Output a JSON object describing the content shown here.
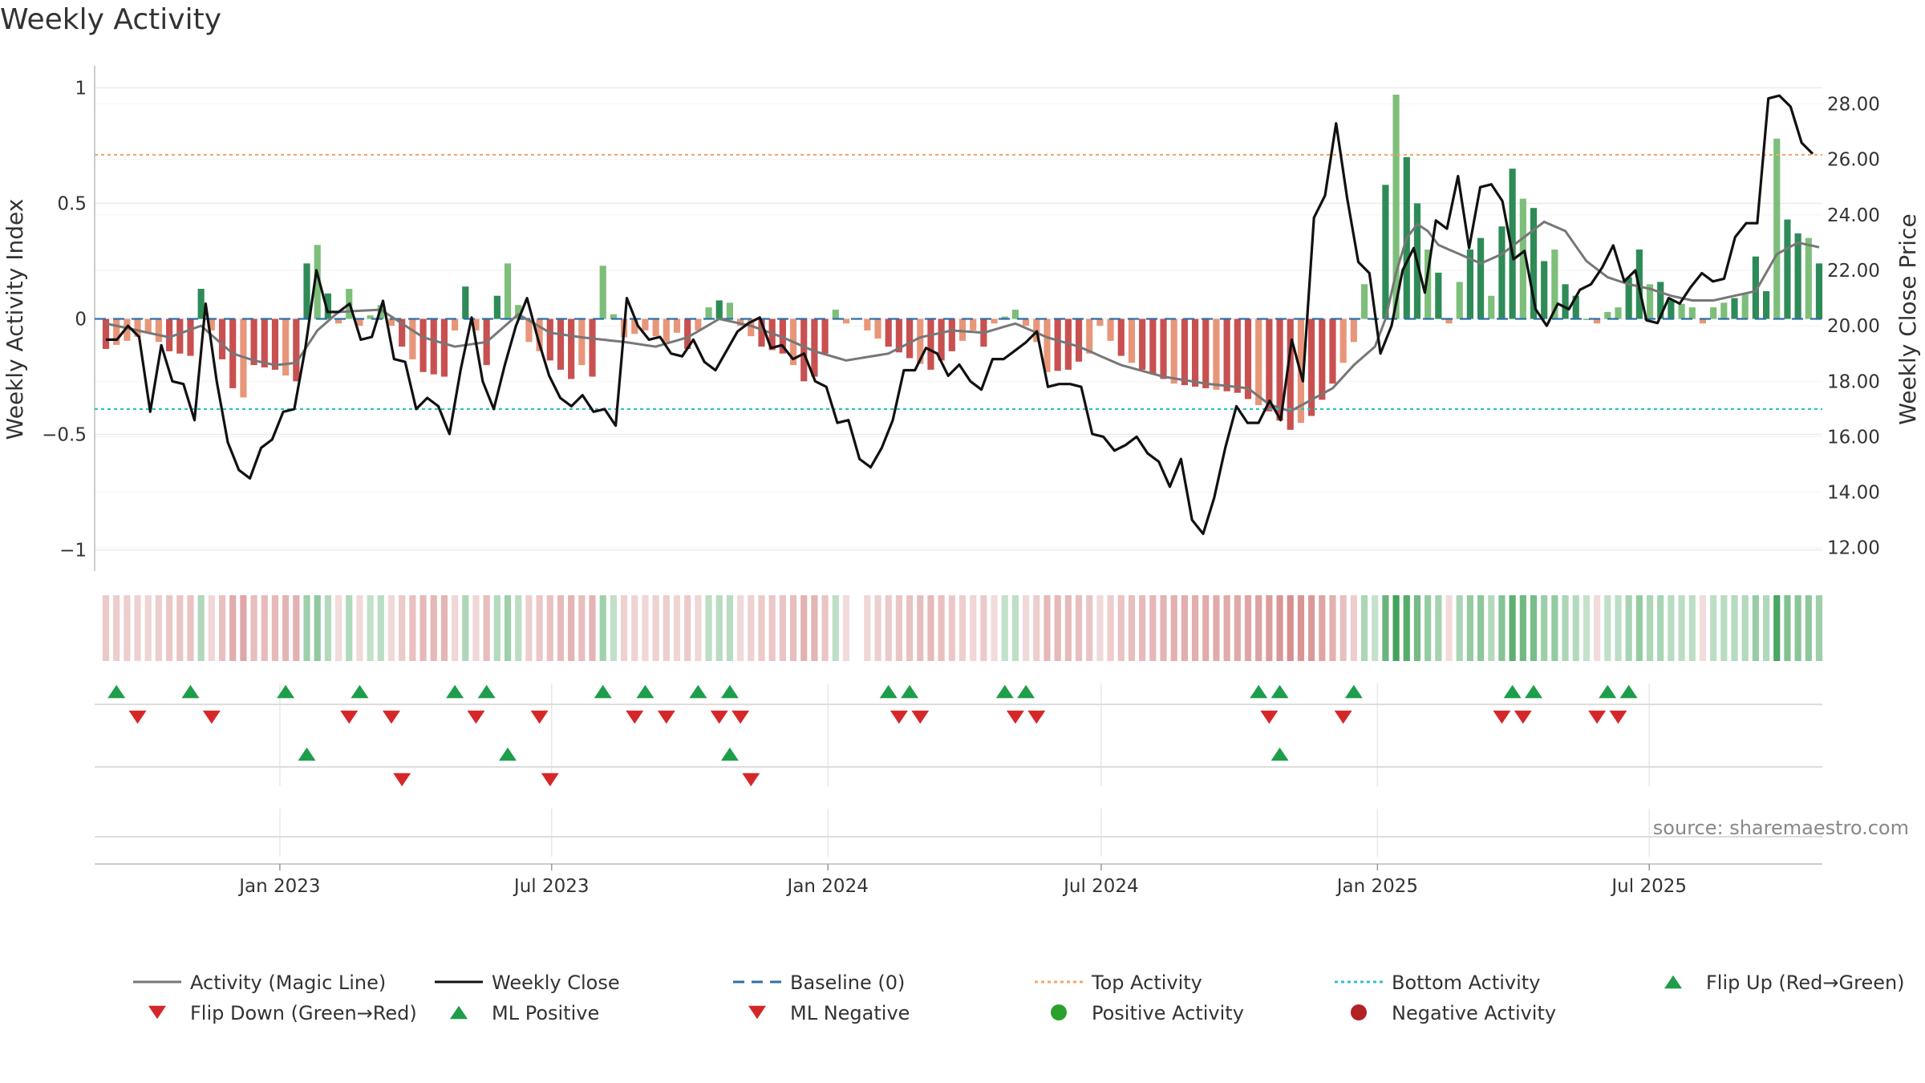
{
  "chart_data": {
    "type": "bar",
    "title": "Weekly Activity",
    "ylabel_left": "Weekly Activity Index",
    "ylabel_right": "Weekly Close Price",
    "ylim_left": [
      -1.05,
      1.05
    ],
    "ylim_right": [
      11.5,
      29.0
    ],
    "yticks_left": [
      {
        "v": 1,
        "label": "1"
      },
      {
        "v": 0.5,
        "label": "0.5"
      },
      {
        "v": 0,
        "label": "0"
      },
      {
        "v": -0.5,
        "label": "−0.5"
      },
      {
        "v": -1,
        "label": "−1"
      }
    ],
    "yticks_right": [
      "12.00",
      "14.00",
      "16.00",
      "18.00",
      "20.00",
      "22.00",
      "24.00",
      "26.00",
      "28.00"
    ],
    "x_start": "2022-09-05",
    "x_end": "2025-10-20",
    "xticks": [
      {
        "date": "2023-01-01",
        "label": "Jan 2023"
      },
      {
        "date": "2023-07-01",
        "label": "Jul 2023"
      },
      {
        "date": "2024-01-01",
        "label": "Jan 2024"
      },
      {
        "date": "2024-07-01",
        "label": "Jul 2024"
      },
      {
        "date": "2025-01-01",
        "label": "Jan 2025"
      },
      {
        "date": "2025-07-01",
        "label": "Jul 2025"
      }
    ],
    "top_activity": 0.71,
    "bottom_activity": -0.39,
    "activity_keyframes": [
      [
        0,
        -0.13
      ],
      [
        4,
        -0.06
      ],
      [
        6,
        -0.14
      ],
      [
        8,
        -0.16
      ],
      [
        9,
        0.13
      ],
      [
        10,
        -0.05
      ],
      [
        12,
        -0.3
      ],
      [
        13,
        -0.34
      ],
      [
        14,
        -0.2
      ],
      [
        16,
        -0.22
      ],
      [
        18,
        -0.27
      ],
      [
        19,
        0.24
      ],
      [
        20,
        0.32
      ],
      [
        21,
        0.11
      ],
      [
        22,
        -0.02
      ],
      [
        23,
        0.13
      ],
      [
        24,
        -0.03
      ],
      [
        26,
        0.06
      ],
      [
        28,
        -0.12
      ],
      [
        30,
        -0.23
      ],
      [
        32,
        -0.25
      ],
      [
        33,
        -0.05
      ],
      [
        34,
        0.14
      ],
      [
        35,
        -0.05
      ],
      [
        36,
        -0.2
      ],
      [
        37,
        0.1
      ],
      [
        38,
        0.24
      ],
      [
        39,
        0.06
      ],
      [
        40,
        -0.1
      ],
      [
        42,
        -0.18
      ],
      [
        44,
        -0.26
      ],
      [
        45,
        -0.2
      ],
      [
        46,
        -0.25
      ],
      [
        47,
        0.23
      ],
      [
        48,
        0.02
      ],
      [
        49,
        -0.08
      ],
      [
        51,
        -0.05
      ],
      [
        53,
        -0.1
      ],
      [
        54,
        -0.06
      ],
      [
        55,
        -0.13
      ],
      [
        56,
        -0.05
      ],
      [
        57,
        0.05
      ],
      [
        58,
        0.08
      ],
      [
        59,
        0.07
      ],
      [
        60,
        -0.03
      ],
      [
        62,
        -0.12
      ],
      [
        64,
        -0.15
      ],
      [
        65,
        -0.2
      ],
      [
        66,
        -0.27
      ],
      [
        67,
        -0.25
      ],
      [
        68,
        -0.15
      ],
      [
        69,
        0.04
      ],
      [
        70,
        -0.02
      ],
      [
        71,
        0.02
      ],
      [
        72,
        -0.05
      ],
      [
        74,
        -0.12
      ],
      [
        76,
        -0.17
      ],
      [
        78,
        -0.22
      ],
      [
        80,
        -0.14
      ],
      [
        82,
        -0.05
      ],
      [
        83,
        -0.12
      ],
      [
        84,
        -0.02
      ],
      [
        86,
        0.04
      ],
      [
        88,
        -0.1
      ],
      [
        89,
        -0.23
      ],
      [
        91,
        -0.22
      ],
      [
        93,
        -0.15
      ],
      [
        94,
        -0.03
      ],
      [
        96,
        -0.16
      ],
      [
        98,
        -0.22
      ],
      [
        101,
        -0.28
      ],
      [
        104,
        -0.3
      ],
      [
        107,
        -0.32
      ],
      [
        110,
        -0.4
      ],
      [
        112,
        -0.48
      ],
      [
        114,
        -0.42
      ],
      [
        116,
        -0.28
      ],
      [
        118,
        -0.1
      ],
      [
        119,
        0.15
      ],
      [
        120,
        0.0
      ],
      [
        121,
        0.58
      ],
      [
        122,
        0.97
      ],
      [
        123,
        0.7
      ],
      [
        124,
        0.5
      ],
      [
        125,
        0.3
      ],
      [
        126,
        0.2
      ],
      [
        127,
        -0.02
      ],
      [
        128,
        0.16
      ],
      [
        129,
        0.3
      ],
      [
        130,
        0.35
      ],
      [
        131,
        0.1
      ],
      [
        132,
        0.4
      ],
      [
        133,
        0.65
      ],
      [
        134,
        0.52
      ],
      [
        135,
        0.48
      ],
      [
        136,
        0.25
      ],
      [
        137,
        0.3
      ],
      [
        138,
        0.15
      ],
      [
        139,
        0.1
      ],
      [
        140,
        0.0
      ],
      [
        141,
        -0.02
      ],
      [
        142,
        0.03
      ],
      [
        143,
        0.05
      ],
      [
        144,
        0.18
      ],
      [
        145,
        0.3
      ],
      [
        146,
        0.15
      ],
      [
        147,
        0.16
      ],
      [
        148,
        0.08
      ],
      [
        150,
        0.05
      ],
      [
        151,
        -0.02
      ],
      [
        152,
        0.05
      ],
      [
        153,
        0.07
      ],
      [
        154,
        0.09
      ],
      [
        155,
        0.11
      ],
      [
        156,
        0.27
      ],
      [
        157,
        0.12
      ],
      [
        158,
        0.78
      ],
      [
        159,
        0.43
      ],
      [
        160,
        0.37
      ],
      [
        161,
        0.35
      ],
      [
        162,
        0.24
      ]
    ],
    "bar_gap_weeks": [
      71
    ],
    "magic_line_keyframes": [
      [
        0,
        -0.02
      ],
      [
        3,
        -0.05
      ],
      [
        6,
        -0.08
      ],
      [
        9,
        -0.03
      ],
      [
        12,
        -0.15
      ],
      [
        14,
        -0.18
      ],
      [
        16,
        -0.2
      ],
      [
        18,
        -0.19
      ],
      [
        20,
        -0.05
      ],
      [
        22,
        0.03
      ],
      [
        26,
        0.04
      ],
      [
        30,
        -0.08
      ],
      [
        33,
        -0.12
      ],
      [
        36,
        -0.1
      ],
      [
        39,
        0.02
      ],
      [
        42,
        -0.06
      ],
      [
        45,
        -0.08
      ],
      [
        49,
        -0.1
      ],
      [
        52,
        -0.12
      ],
      [
        55,
        -0.08
      ],
      [
        58,
        0.0
      ],
      [
        61,
        -0.03
      ],
      [
        64,
        -0.08
      ],
      [
        67,
        -0.14
      ],
      [
        70,
        -0.18
      ],
      [
        74,
        -0.15
      ],
      [
        77,
        -0.08
      ],
      [
        80,
        -0.05
      ],
      [
        83,
        -0.06
      ],
      [
        86,
        -0.02
      ],
      [
        89,
        -0.08
      ],
      [
        92,
        -0.12
      ],
      [
        96,
        -0.2
      ],
      [
        100,
        -0.25
      ],
      [
        104,
        -0.28
      ],
      [
        108,
        -0.3
      ],
      [
        110,
        -0.37
      ],
      [
        112,
        -0.4
      ],
      [
        114,
        -0.35
      ],
      [
        116,
        -0.3
      ],
      [
        118,
        -0.2
      ],
      [
        120,
        -0.12
      ],
      [
        121,
        0.0
      ],
      [
        122,
        0.2
      ],
      [
        123,
        0.35
      ],
      [
        124,
        0.41
      ],
      [
        125,
        0.38
      ],
      [
        126,
        0.32
      ],
      [
        128,
        0.28
      ],
      [
        130,
        0.24
      ],
      [
        132,
        0.28
      ],
      [
        134,
        0.35
      ],
      [
        136,
        0.42
      ],
      [
        138,
        0.38
      ],
      [
        140,
        0.25
      ],
      [
        142,
        0.18
      ],
      [
        144,
        0.15
      ],
      [
        146,
        0.13
      ],
      [
        148,
        0.1
      ],
      [
        150,
        0.08
      ],
      [
        152,
        0.08
      ],
      [
        154,
        0.1
      ],
      [
        156,
        0.12
      ],
      [
        158,
        0.28
      ],
      [
        160,
        0.33
      ],
      [
        162,
        0.31
      ]
    ],
    "weekly_close_keyframes": [
      [
        0,
        19.5
      ],
      [
        1,
        19.5
      ],
      [
        2,
        20.0
      ],
      [
        3,
        19.6
      ],
      [
        4,
        16.9
      ],
      [
        5,
        19.3
      ],
      [
        6,
        18.0
      ],
      [
        7,
        17.9
      ],
      [
        8,
        16.6
      ],
      [
        9,
        20.8
      ],
      [
        10,
        18.0
      ],
      [
        11,
        15.8
      ],
      [
        12,
        14.8
      ],
      [
        13,
        14.5
      ],
      [
        14,
        15.6
      ],
      [
        15,
        15.9
      ],
      [
        16,
        16.9
      ],
      [
        17,
        17.0
      ],
      [
        18,
        19.2
      ],
      [
        19,
        22.0
      ],
      [
        20,
        20.5
      ],
      [
        21,
        20.5
      ],
      [
        22,
        20.8
      ],
      [
        23,
        19.5
      ],
      [
        24,
        19.6
      ],
      [
        25,
        20.9
      ],
      [
        26,
        18.8
      ],
      [
        27,
        18.7
      ],
      [
        28,
        17.0
      ],
      [
        29,
        17.4
      ],
      [
        30,
        17.1
      ],
      [
        31,
        16.1
      ],
      [
        32,
        18.4
      ],
      [
        33,
        20.3
      ],
      [
        34,
        18.0
      ],
      [
        35,
        17.0
      ],
      [
        36,
        18.6
      ],
      [
        37,
        20.0
      ],
      [
        38,
        21.0
      ],
      [
        39,
        19.5
      ],
      [
        40,
        18.2
      ],
      [
        41,
        17.4
      ],
      [
        42,
        17.1
      ],
      [
        43,
        17.5
      ],
      [
        44,
        16.9
      ],
      [
        45,
        17.0
      ],
      [
        46,
        16.4
      ],
      [
        47,
        21.0
      ],
      [
        48,
        20.0
      ],
      [
        49,
        19.5
      ],
      [
        50,
        19.6
      ],
      [
        51,
        19.0
      ],
      [
        52,
        18.9
      ],
      [
        53,
        19.5
      ],
      [
        54,
        18.7
      ],
      [
        55,
        18.4
      ],
      [
        56,
        19.1
      ],
      [
        57,
        19.8
      ],
      [
        58,
        20.1
      ],
      [
        59,
        20.3
      ],
      [
        60,
        19.2
      ],
      [
        61,
        19.3
      ],
      [
        62,
        18.8
      ],
      [
        63,
        19.0
      ],
      [
        64,
        18.0
      ],
      [
        65,
        17.8
      ],
      [
        66,
        16.5
      ],
      [
        67,
        16.6
      ],
      [
        68,
        15.2
      ],
      [
        69,
        14.9
      ],
      [
        70,
        15.6
      ],
      [
        71,
        16.6
      ],
      [
        72,
        18.4
      ],
      [
        73,
        18.4
      ],
      [
        74,
        19.2
      ],
      [
        75,
        19.0
      ],
      [
        76,
        18.2
      ],
      [
        77,
        18.6
      ],
      [
        78,
        18.0
      ],
      [
        79,
        17.7
      ],
      [
        80,
        18.8
      ],
      [
        81,
        18.8
      ],
      [
        82,
        19.1
      ],
      [
        83,
        19.4
      ],
      [
        84,
        19.8
      ],
      [
        85,
        17.8
      ],
      [
        86,
        17.9
      ],
      [
        87,
        17.9
      ],
      [
        88,
        17.8
      ],
      [
        89,
        16.1
      ],
      [
        90,
        16.0
      ],
      [
        91,
        15.5
      ],
      [
        92,
        15.7
      ],
      [
        93,
        16.0
      ],
      [
        94,
        15.4
      ],
      [
        95,
        15.1
      ],
      [
        96,
        14.2
      ],
      [
        97,
        15.2
      ],
      [
        98,
        13.0
      ],
      [
        99,
        12.5
      ],
      [
        100,
        13.8
      ],
      [
        101,
        15.6
      ],
      [
        102,
        17.1
      ],
      [
        103,
        16.5
      ],
      [
        104,
        16.5
      ],
      [
        105,
        17.3
      ],
      [
        106,
        16.6
      ],
      [
        107,
        19.5
      ],
      [
        108,
        18.0
      ],
      [
        109,
        23.9
      ],
      [
        110,
        24.7
      ],
      [
        111,
        27.3
      ],
      [
        112,
        24.6
      ],
      [
        113,
        22.3
      ],
      [
        114,
        21.9
      ],
      [
        115,
        19.0
      ],
      [
        116,
        20.0
      ],
      [
        117,
        22.0
      ],
      [
        118,
        22.8
      ],
      [
        119,
        21.2
      ],
      [
        120,
        23.8
      ],
      [
        121,
        23.5
      ],
      [
        122,
        25.4
      ],
      [
        123,
        22.8
      ],
      [
        124,
        25.0
      ],
      [
        125,
        25.1
      ],
      [
        126,
        24.5
      ],
      [
        127,
        22.4
      ],
      [
        128,
        22.7
      ],
      [
        129,
        20.6
      ],
      [
        130,
        20.0
      ],
      [
        131,
        20.8
      ],
      [
        132,
        20.6
      ],
      [
        133,
        21.3
      ],
      [
        134,
        21.5
      ],
      [
        135,
        22.1
      ],
      [
        136,
        22.9
      ],
      [
        137,
        21.6
      ],
      [
        138,
        22.0
      ],
      [
        139,
        20.2
      ],
      [
        140,
        20.1
      ],
      [
        141,
        21.0
      ],
      [
        142,
        20.8
      ],
      [
        143,
        21.4
      ],
      [
        144,
        21.9
      ],
      [
        145,
        21.6
      ],
      [
        146,
        21.7
      ],
      [
        147,
        23.2
      ],
      [
        148,
        23.7
      ],
      [
        149,
        23.7
      ],
      [
        150,
        28.2
      ],
      [
        151,
        28.3
      ],
      [
        152,
        27.9
      ],
      [
        153,
        26.6
      ],
      [
        154,
        26.2
      ]
    ],
    "flip_up_weeks": [
      1,
      8,
      17,
      24,
      33,
      36,
      47,
      51,
      56,
      59,
      74,
      76,
      85,
      87,
      109,
      111,
      118,
      133,
      135,
      142,
      144
    ],
    "flip_down_weeks": [
      3,
      10,
      23,
      27,
      35,
      41,
      50,
      53,
      58,
      60,
      75,
      77,
      86,
      88,
      110,
      117,
      132,
      134,
      141,
      143
    ],
    "ml_positive_weeks": [
      19,
      38,
      59,
      111
    ],
    "ml_negative_weeks": [
      28,
      42,
      61
    ],
    "source": "source: sharemaestro.com",
    "legend": [
      {
        "label": "Activity (Magic Line)",
        "kind": "line",
        "color": "#777777",
        "dash": ""
      },
      {
        "label": "Weekly Close",
        "kind": "line",
        "color": "#111111",
        "dash": ""
      },
      {
        "label": "Baseline (0)",
        "kind": "line",
        "color": "#2f6fa8",
        "dash": "14 9"
      },
      {
        "label": "Top Activity",
        "kind": "line",
        "color": "#f0a868",
        "dash": "4 4"
      },
      {
        "label": "Bottom Activity",
        "kind": "line",
        "color": "#35c0c8",
        "dash": "4 4"
      },
      {
        "label": "Flip Up (Red→Green)",
        "kind": "up",
        "color": "#1e9e4a"
      },
      {
        "label": "Flip Down (Green→Red)",
        "kind": "down",
        "color": "#d62728"
      },
      {
        "label": "ML Positive",
        "kind": "up",
        "color": "#1e9e4a"
      },
      {
        "label": "ML Negative",
        "kind": "down",
        "color": "#d62728"
      },
      {
        "label": "Positive Activity",
        "kind": "dot",
        "color": "#2ca02c"
      },
      {
        "label": "Negative Activity",
        "kind": "dot",
        "color": "#b22222"
      }
    ],
    "colors": {
      "pos_strong": "#2e8b57",
      "pos_light": "#7dbf7a",
      "neg_strong": "#c95050",
      "neg_light": "#e8967a",
      "magic_line": "#777777",
      "close": "#111111",
      "top": "#f0a868",
      "bottom": "#35c0c8",
      "baseline": "#2f6fa8",
      "up": "#1e9e4a",
      "down": "#d62728"
    }
  }
}
